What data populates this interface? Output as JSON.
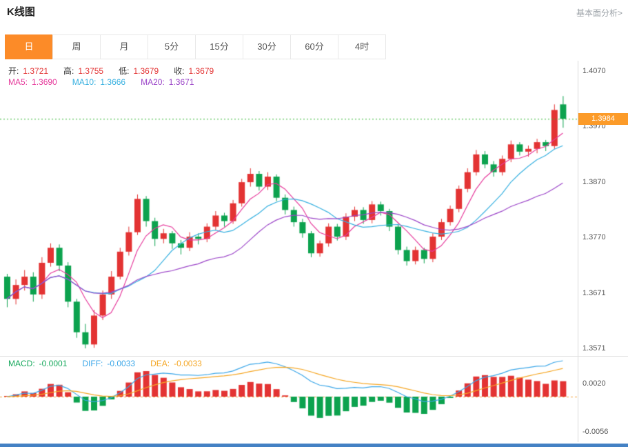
{
  "header": {
    "title": "K线图",
    "link": "基本面分析>"
  },
  "tabs": [
    {
      "key": "day",
      "label": "日",
      "active": true
    },
    {
      "key": "week",
      "label": "周",
      "active": false
    },
    {
      "key": "month",
      "label": "月",
      "active": false
    },
    {
      "key": "5min",
      "label": "5分",
      "active": false
    },
    {
      "key": "15min",
      "label": "15分",
      "active": false
    },
    {
      "key": "30min",
      "label": "30分",
      "active": false
    },
    {
      "key": "60min",
      "label": "60分",
      "active": false
    },
    {
      "key": "4hour",
      "label": "4时",
      "active": false
    }
  ],
  "ohlc_bar": {
    "items": [
      {
        "label": "开:",
        "value": "1.3721"
      },
      {
        "label": "高:",
        "value": "1.3755"
      },
      {
        "label": "低:",
        "value": "1.3679"
      },
      {
        "label": "收:",
        "value": "1.3679"
      }
    ]
  },
  "ma_bar": {
    "items": [
      {
        "label": "MA5:",
        "value": "1.3690",
        "color": "#e6399b"
      },
      {
        "label": "MA10:",
        "value": "1.3666",
        "color": "#36b0e0"
      },
      {
        "label": "MA20:",
        "value": "1.3671",
        "color": "#9b44c8"
      }
    ]
  },
  "macd_bar": {
    "items": [
      {
        "label": "MACD:",
        "value": "-0.0001",
        "color": "#16a85c"
      },
      {
        "label": "DIFF:",
        "value": "-0.0033",
        "color": "#3aa6e8"
      },
      {
        "label": "DEA:",
        "value": "-0.0033",
        "color": "#f5a623"
      }
    ]
  },
  "colors": {
    "up": "#e33333",
    "down": "#0ca24e",
    "ma5": "#e6399b",
    "ma10": "#36b0e0",
    "ma20": "#9b44c8",
    "accent_tab": "#fc8b28",
    "price_badge": "#fc9b29",
    "price_line": "#2db52d",
    "zero_line": "#f0a23c",
    "diff_line": "#3aa6e8",
    "dea_line": "#f5a623",
    "scrollbar": "#4481c4"
  },
  "chart_data": [
    {
      "type": "candlestick",
      "title": "K线图 (日)",
      "y_ticks": [
        "1.4070",
        "1.3970",
        "1.3870",
        "1.3770",
        "1.3671",
        "1.3571"
      ],
      "y_range": [
        1.3571,
        1.407
      ],
      "current_price": 1.3984,
      "current_price_label": "1.3984",
      "overlays": [
        {
          "name": "MA5",
          "period": 5
        },
        {
          "name": "MA10",
          "period": 10
        },
        {
          "name": "MA20",
          "period": 20
        }
      ],
      "candles": [
        [
          1.37,
          1.3705,
          1.3645,
          1.366
        ],
        [
          1.366,
          1.3695,
          1.365,
          1.3685
        ],
        [
          1.3685,
          1.3712,
          1.3675,
          1.37
        ],
        [
          1.37,
          1.3708,
          1.3655,
          1.3668
        ],
        [
          1.3668,
          1.3735,
          1.366,
          1.3725
        ],
        [
          1.3725,
          1.376,
          1.3718,
          1.3752
        ],
        [
          1.3752,
          1.3758,
          1.371,
          1.372
        ],
        [
          1.372,
          1.3726,
          1.3645,
          1.3655
        ],
        [
          1.3655,
          1.366,
          1.359,
          1.36
        ],
        [
          1.36,
          1.3615,
          1.3571,
          1.3578
        ],
        [
          1.3578,
          1.364,
          1.3572,
          1.363
        ],
        [
          1.363,
          1.3675,
          1.3622,
          1.3668
        ],
        [
          1.3668,
          1.371,
          1.366,
          1.37
        ],
        [
          1.37,
          1.3752,
          1.3695,
          1.3745
        ],
        [
          1.3745,
          1.379,
          1.3738,
          1.378
        ],
        [
          1.378,
          1.3848,
          1.3775,
          1.384
        ],
        [
          1.384,
          1.3845,
          1.379,
          1.38
        ],
        [
          1.38,
          1.3806,
          1.3755,
          1.3768
        ],
        [
          1.3768,
          1.3786,
          1.376,
          1.3778
        ],
        [
          1.3778,
          1.3782,
          1.375,
          1.376
        ],
        [
          1.376,
          1.3766,
          1.374,
          1.3752
        ],
        [
          1.3752,
          1.378,
          1.3746,
          1.3772
        ],
        [
          1.3772,
          1.3778,
          1.3758,
          1.3768
        ],
        [
          1.3768,
          1.3796,
          1.3762,
          1.379
        ],
        [
          1.379,
          1.3818,
          1.3784,
          1.381
        ],
        [
          1.381,
          1.3815,
          1.379,
          1.38
        ],
        [
          1.38,
          1.3838,
          1.3795,
          1.3832
        ],
        [
          1.3832,
          1.3876,
          1.3826,
          1.387
        ],
        [
          1.387,
          1.3895,
          1.3862,
          1.3885
        ],
        [
          1.3885,
          1.389,
          1.3855,
          1.3862
        ],
        [
          1.3862,
          1.3888,
          1.3856,
          1.388
        ],
        [
          1.388,
          1.3884,
          1.3836,
          1.3842
        ],
        [
          1.3842,
          1.3848,
          1.3812,
          1.382
        ],
        [
          1.382,
          1.3826,
          1.379,
          1.3798
        ],
        [
          1.3798,
          1.3804,
          1.377,
          1.3778
        ],
        [
          1.3778,
          1.3782,
          1.3735,
          1.3742
        ],
        [
          1.3742,
          1.3765,
          1.3736,
          1.376
        ],
        [
          1.376,
          1.3796,
          1.3754,
          1.379
        ],
        [
          1.379,
          1.3795,
          1.3765,
          1.3772
        ],
        [
          1.3772,
          1.3814,
          1.3766,
          1.3808
        ],
        [
          1.3808,
          1.3826,
          1.38,
          1.382
        ],
        [
          1.382,
          1.3825,
          1.3795,
          1.3802
        ],
        [
          1.3802,
          1.3836,
          1.3796,
          1.383
        ],
        [
          1.383,
          1.3835,
          1.381,
          1.3818
        ],
        [
          1.3818,
          1.3822,
          1.3782,
          1.379
        ],
        [
          1.379,
          1.3795,
          1.374,
          1.3748
        ],
        [
          1.3748,
          1.3754,
          1.372,
          1.3728
        ],
        [
          1.3728,
          1.3754,
          1.3722,
          1.3748
        ],
        [
          1.3748,
          1.3752,
          1.3724,
          1.3732
        ],
        [
          1.3732,
          1.3778,
          1.3726,
          1.3772
        ],
        [
          1.3772,
          1.3804,
          1.3766,
          1.3798
        ],
        [
          1.3798,
          1.3828,
          1.3792,
          1.3822
        ],
        [
          1.3822,
          1.3864,
          1.3816,
          1.3858
        ],
        [
          1.3858,
          1.3895,
          1.3852,
          1.3888
        ],
        [
          1.3888,
          1.3928,
          1.3882,
          1.392
        ],
        [
          1.392,
          1.3926,
          1.3895,
          1.3902
        ],
        [
          1.3902,
          1.3908,
          1.388,
          1.3888
        ],
        [
          1.3888,
          1.3918,
          1.3882,
          1.3912
        ],
        [
          1.3912,
          1.3945,
          1.3906,
          1.3938
        ],
        [
          1.3938,
          1.3942,
          1.3918,
          1.3925
        ],
        [
          1.3925,
          1.3936,
          1.3916,
          1.393
        ],
        [
          1.393,
          1.3948,
          1.3922,
          1.3942
        ],
        [
          1.3942,
          1.3946,
          1.3926,
          1.3935
        ],
        [
          1.3935,
          1.401,
          1.393,
          1.4
        ],
        [
          1.401,
          1.4025,
          1.3968,
          1.3984
        ]
      ]
    },
    {
      "type": "macd",
      "y_ticks": [
        "0.0020",
        "-0.0056"
      ],
      "ema_fast": 12,
      "ema_slow": 26,
      "signal": 9
    }
  ]
}
